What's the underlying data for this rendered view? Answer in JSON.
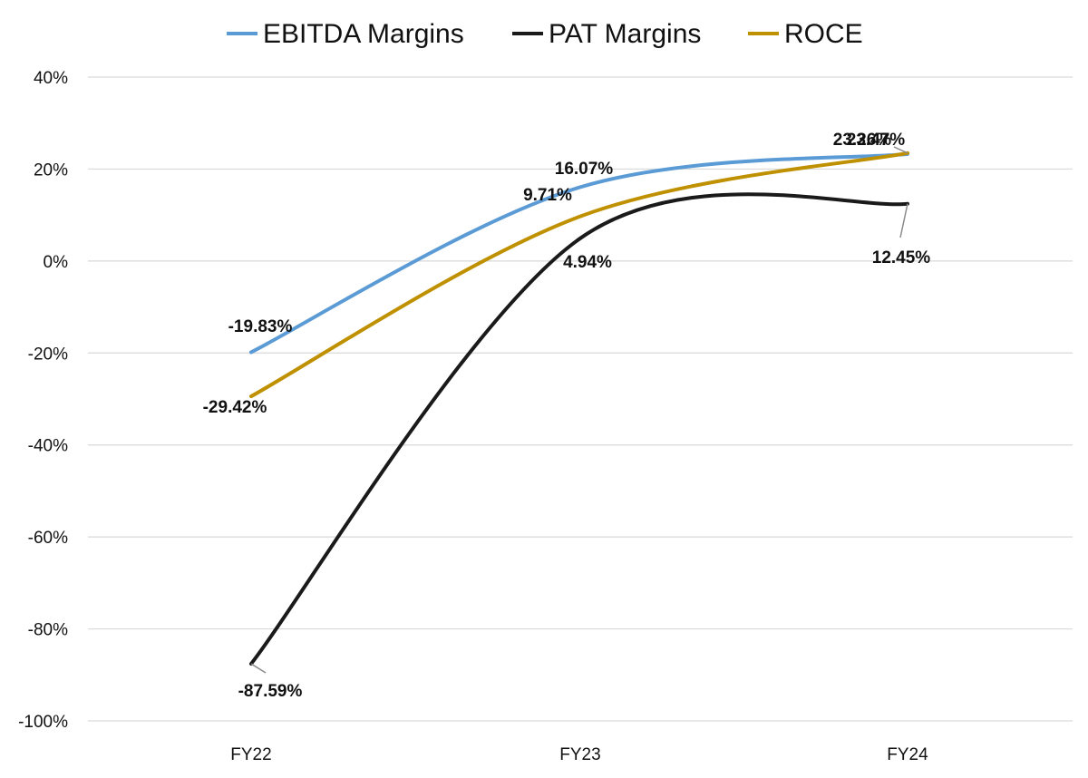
{
  "chart_data": {
    "type": "line",
    "categories": [
      "FY22",
      "FY23",
      "FY24"
    ],
    "series": [
      {
        "name": "EBITDA Margins",
        "color": "#5b9bd5",
        "values": [
          -19.83,
          16.07,
          23.26
        ],
        "labels": [
          "-19.83%",
          "16.07%",
          "23.26%"
        ]
      },
      {
        "name": "PAT Margins",
        "color": "#1a1a1a",
        "values": [
          -87.59,
          4.94,
          12.45
        ],
        "labels": [
          "-87.59%",
          "4.94%",
          "12.45%"
        ]
      },
      {
        "name": "ROCE",
        "color": "#bf9000",
        "values": [
          -29.42,
          9.71,
          23.47
        ],
        "labels": [
          "-29.42%",
          "9.71%",
          "23.47%"
        ]
      }
    ],
    "ylim": [
      -100,
      40
    ],
    "yticks": [
      40,
      20,
      0,
      -20,
      -40,
      -60,
      -80,
      -100
    ],
    "ytick_labels": [
      "40%",
      "20%",
      "0%",
      "-20%",
      "-40%",
      "-60%",
      "-80%",
      "-100%"
    ],
    "grid": true,
    "legend_position": "top",
    "title": "",
    "xlabel": "",
    "ylabel": ""
  }
}
